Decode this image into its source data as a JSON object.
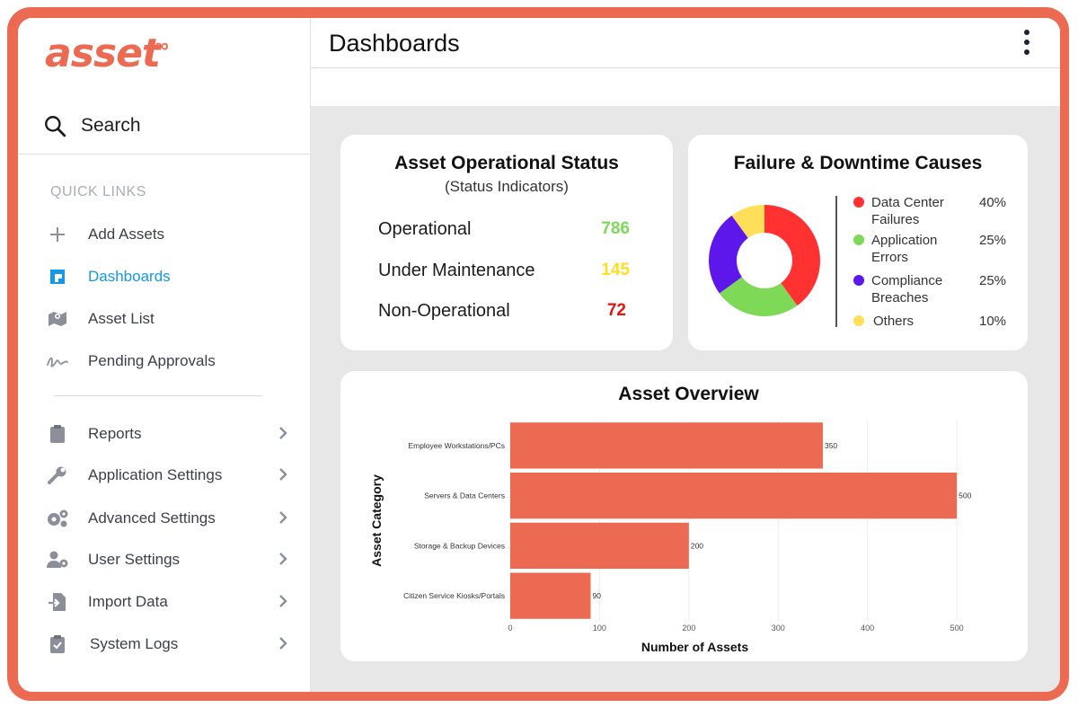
{
  "brand": {
    "name": "asset",
    "accent": "#ed6a52"
  },
  "sidebar": {
    "search_label": "Search",
    "quick_links_title": "QUICK LINKS",
    "quick_links": [
      {
        "label": "Add Assets",
        "icon": "plus-icon"
      },
      {
        "label": "Dashboards",
        "icon": "dashboard-icon",
        "active": true
      },
      {
        "label": "Asset List",
        "icon": "map-icon"
      },
      {
        "label": "Pending Approvals",
        "icon": "signature-icon"
      }
    ],
    "menu": [
      {
        "label": "Reports",
        "icon": "clipboard-icon"
      },
      {
        "label": "Application Settings",
        "icon": "wrench-icon"
      },
      {
        "label": "Advanced Settings",
        "icon": "gears-icon"
      },
      {
        "label": "User Settings",
        "icon": "user-gear-icon"
      },
      {
        "label": "Import Data",
        "icon": "file-import-icon"
      },
      {
        "label": "System Logs",
        "icon": "clipboard-check-icon"
      }
    ]
  },
  "header": {
    "title": "Dashboards"
  },
  "status_card": {
    "title": "Asset Operational Status",
    "subtitle": "(Status Indicators)",
    "rows": [
      {
        "label": "Operational",
        "value": "786",
        "color": "#7ed957"
      },
      {
        "label": "Under Maintenance",
        "value": "145",
        "color": "#ffde21"
      },
      {
        "label": "Non-Operational",
        "value": "72",
        "color": "#e0150f"
      }
    ]
  },
  "failure_card": {
    "title": "Failure & Downtime Causes",
    "items": [
      {
        "label": "Data Center Failures",
        "pct": "40%",
        "value": 40,
        "color": "#ff3131"
      },
      {
        "label": "Application Errors",
        "pct": "25%",
        "value": 25,
        "color": "#7ed957"
      },
      {
        "label": "Compliance Breaches",
        "pct": "25%",
        "value": 25,
        "color": "#5e17eb"
      },
      {
        "label": "Others",
        "pct": "10%",
        "value": 10,
        "color": "#ffde59"
      }
    ]
  },
  "chart_data": {
    "type": "bar",
    "orientation": "horizontal",
    "title": "Asset Overview",
    "categories": [
      "Employee Workstations/PCs",
      "Servers & Data Centers",
      "Storage & Backup Devices",
      "Citizen Service Kiosks/Portals"
    ],
    "values": [
      350,
      500,
      200,
      90
    ],
    "value_labels": [
      "350",
      "500",
      "200",
      "90"
    ],
    "xlabel": "Number of Assets",
    "ylabel": "Asset Category",
    "xlim": [
      0,
      520
    ],
    "xticks": [
      "0",
      "100",
      "200",
      "300",
      "400",
      "500"
    ],
    "grid": true,
    "bar_color": "#ed6a52"
  }
}
